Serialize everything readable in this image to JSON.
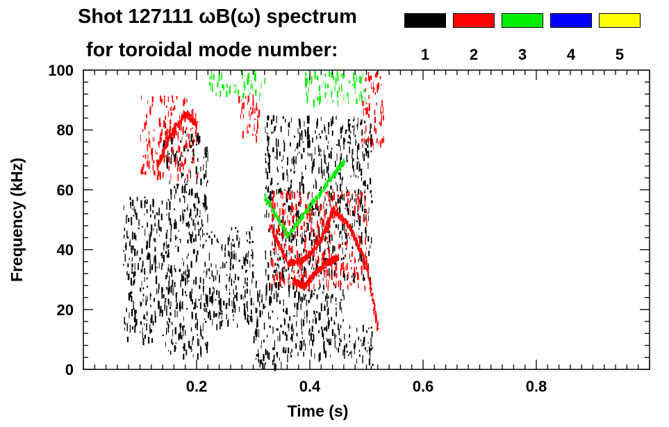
{
  "chart_data": {
    "type": "heatmap",
    "title": "Shot 127111 ωB(ω) spectrum",
    "subtitle": "for toroidal mode number:",
    "xlabel": "Time (s)",
    "ylabel": "Frequency (kHz)",
    "xlim": [
      0.0,
      1.0
    ],
    "ylim": [
      0,
      100
    ],
    "xticks": [
      {
        "value": 0.2,
        "label": "0.2"
      },
      {
        "value": 0.4,
        "label": "0.4"
      },
      {
        "value": 0.6,
        "label": "0.6"
      },
      {
        "value": 0.8,
        "label": "0.8"
      }
    ],
    "yticks": [
      {
        "value": 0,
        "label": "0"
      },
      {
        "value": 20,
        "label": "20"
      },
      {
        "value": 40,
        "label": "40"
      },
      {
        "value": 60,
        "label": "60"
      },
      {
        "value": 80,
        "label": "80"
      },
      {
        "value": 100,
        "label": "100"
      }
    ],
    "legend": [
      {
        "mode": "1",
        "color": "#000000"
      },
      {
        "mode": "2",
        "color": "#ff0000"
      },
      {
        "mode": "3",
        "color": "#00ee00"
      },
      {
        "mode": "4",
        "color": "#0000ff"
      },
      {
        "mode": "5",
        "color": "#ffff00"
      }
    ],
    "legend_position": "top-right",
    "series": [
      {
        "mode": "1",
        "color": "#000000",
        "regions": [
          {
            "t": [
              0.07,
              0.14
            ],
            "f": [
              10,
              58
            ]
          },
          {
            "t": [
              0.14,
              0.22
            ],
            "f": [
              5,
              80
            ]
          },
          {
            "t": [
              0.22,
              0.3
            ],
            "f": [
              15,
              48
            ]
          },
          {
            "t": [
              0.3,
              0.37
            ],
            "f": [
              2,
              30
            ]
          },
          {
            "t": [
              0.37,
              0.46
            ],
            "f": [
              5,
              30
            ]
          },
          {
            "t": [
              0.46,
              0.51
            ],
            "f": [
              1,
              15
            ]
          },
          {
            "t": [
              0.32,
              0.51
            ],
            "f": [
              30,
              85
            ]
          }
        ]
      },
      {
        "mode": "2",
        "color": "#ff0000",
        "regions": [
          {
            "t": [
              0.1,
              0.2
            ],
            "f": [
              65,
              92
            ]
          },
          {
            "t": [
              0.27,
              0.31
            ],
            "f": [
              78,
              92
            ]
          },
          {
            "t": [
              0.33,
              0.5
            ],
            "f": [
              28,
              60
            ]
          },
          {
            "t": [
              0.49,
              0.53
            ],
            "f": [
              75,
              100
            ]
          }
        ],
        "curves": [
          {
            "t": [
              0.33,
              0.36,
              0.39,
              0.42,
              0.44,
              0.47,
              0.5,
              0.52
            ],
            "f": [
              48,
              36,
              37,
              44,
              54,
              48,
              35,
              13
            ]
          },
          {
            "t": [
              0.37,
              0.39,
              0.41,
              0.43,
              0.45
            ],
            "f": [
              30,
              28,
              33,
              36,
              38
            ]
          },
          {
            "t": [
              0.13,
              0.15,
              0.18,
              0.2
            ],
            "f": [
              68,
              78,
              86,
              82
            ]
          }
        ]
      },
      {
        "mode": "3",
        "color": "#00ee00",
        "regions": [
          {
            "t": [
              0.22,
              0.32
            ],
            "f": [
              92,
              100
            ]
          },
          {
            "t": [
              0.39,
              0.5
            ],
            "f": [
              90,
              100
            ]
          }
        ],
        "curves": [
          {
            "t": [
              0.32,
              0.36,
              0.4,
              0.44,
              0.46
            ],
            "f": [
              58,
              45,
              55,
              65,
              70
            ]
          }
        ]
      },
      {
        "mode": "4",
        "color": "#0000ff",
        "regions": []
      },
      {
        "mode": "5",
        "color": "#ffff00",
        "regions": []
      }
    ]
  }
}
